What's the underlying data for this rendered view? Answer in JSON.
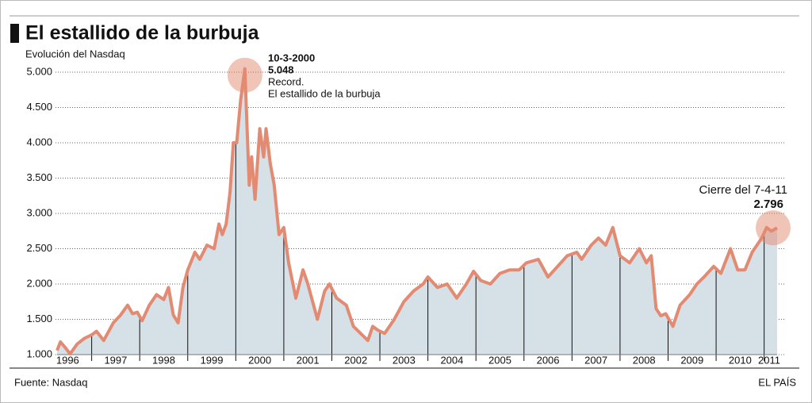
{
  "chart_data": {
    "type": "area",
    "title": "El estallido de la burbuja",
    "subtitle": "Evolución del Nasdaq",
    "source": "Fuente: Nasdaq",
    "brand": "EL PAÍS",
    "annotations": [
      "10-3-2000",
      "5.048",
      "Record.",
      "El estallido de la burbuja",
      "Cierre del 7-4-11",
      "2.796"
    ],
    "line_color": "#e38a72",
    "fill_color": "#d6e0e7",
    "grid": true,
    "xlim": [
      1996.28,
      2011.27
    ],
    "ylim": [
      1000,
      5000
    ],
    "xticks": [
      {
        "value": 1996,
        "label": "1996"
      },
      {
        "value": 1997,
        "label": "1997"
      },
      {
        "value": 1998,
        "label": "1998"
      },
      {
        "value": 1999,
        "label": "1999"
      },
      {
        "value": 2000,
        "label": "2000"
      },
      {
        "value": 2001,
        "label": "2001"
      },
      {
        "value": 2002,
        "label": "2002"
      },
      {
        "value": 2003,
        "label": "2003"
      },
      {
        "value": 2004,
        "label": "2004"
      },
      {
        "value": 2005,
        "label": "2005"
      },
      {
        "value": 2006,
        "label": "2006"
      },
      {
        "value": 2007,
        "label": "2007"
      },
      {
        "value": 2008,
        "label": "2008"
      },
      {
        "value": 2009,
        "label": "2009"
      },
      {
        "value": 2010,
        "label": "2010"
      },
      {
        "value": 2011,
        "label": "2011"
      }
    ],
    "yticks": [
      {
        "value": 1000,
        "label": "1.000"
      },
      {
        "value": 1500,
        "label": "1.500"
      },
      {
        "value": 2000,
        "label": "2.000"
      },
      {
        "value": 2500,
        "label": "2.500"
      },
      {
        "value": 3000,
        "label": "3.000"
      },
      {
        "value": 3500,
        "label": "3.500"
      },
      {
        "value": 4000,
        "label": "4.000"
      },
      {
        "value": 4500,
        "label": "4.500"
      },
      {
        "value": 5000,
        "label": "5.000"
      }
    ],
    "x": [
      1996.28,
      1996.35,
      1996.45,
      1996.55,
      1996.7,
      1996.85,
      1997.0,
      1997.1,
      1997.25,
      1997.45,
      1997.6,
      1997.75,
      1997.85,
      1997.95,
      1998.05,
      1998.2,
      1998.35,
      1998.5,
      1998.6,
      1998.7,
      1998.8,
      1998.9,
      1999.0,
      1999.15,
      1999.25,
      1999.4,
      1999.55,
      1999.65,
      1999.72,
      1999.8,
      1999.88,
      1999.95,
      2000.02,
      2000.1,
      2000.19,
      2000.28,
      2000.33,
      2000.4,
      2000.5,
      2000.58,
      2000.63,
      2000.72,
      2000.8,
      2000.9,
      2001.0,
      2001.1,
      2001.25,
      2001.4,
      2001.5,
      2001.7,
      2001.85,
      2001.95,
      2002.1,
      2002.3,
      2002.45,
      2002.6,
      2002.75,
      2002.85,
      2002.95,
      2003.1,
      2003.3,
      2003.5,
      2003.7,
      2003.9,
      2004.0,
      2004.2,
      2004.4,
      2004.6,
      2004.8,
      2004.95,
      2005.1,
      2005.3,
      2005.5,
      2005.7,
      2005.9,
      2006.05,
      2006.3,
      2006.5,
      2006.7,
      2006.9,
      2007.1,
      2007.2,
      2007.4,
      2007.55,
      2007.7,
      2007.85,
      2008.0,
      2008.2,
      2008.4,
      2008.55,
      2008.65,
      2008.75,
      2008.85,
      2008.95,
      2009.1,
      2009.25,
      2009.45,
      2009.6,
      2009.75,
      2009.95,
      2010.1,
      2010.3,
      2010.45,
      2010.6,
      2010.75,
      2010.95,
      2011.05,
      2011.15,
      2011.27
    ],
    "values": [
      1060,
      1180,
      1100,
      1010,
      1150,
      1230,
      1280,
      1330,
      1200,
      1450,
      1560,
      1700,
      1580,
      1600,
      1480,
      1700,
      1850,
      1780,
      1950,
      1560,
      1450,
      1950,
      2200,
      2450,
      2350,
      2550,
      2500,
      2850,
      2700,
      2850,
      3300,
      4000,
      4000,
      4600,
      5048,
      3400,
      3800,
      3200,
      4200,
      3800,
      4200,
      3700,
      3400,
      2700,
      2800,
      2300,
      1800,
      2200,
      2000,
      1500,
      1900,
      2000,
      1800,
      1700,
      1400,
      1300,
      1200,
      1400,
      1350,
      1300,
      1500,
      1750,
      1900,
      2000,
      2100,
      1950,
      2000,
      1800,
      2000,
      2180,
      2050,
      2000,
      2150,
      2200,
      2200,
      2300,
      2350,
      2100,
      2250,
      2400,
      2450,
      2350,
      2550,
      2650,
      2550,
      2800,
      2400,
      2300,
      2500,
      2300,
      2400,
      1650,
      1550,
      1580,
      1400,
      1700,
      1850,
      2000,
      2100,
      2250,
      2150,
      2500,
      2200,
      2200,
      2450,
      2650,
      2800,
      2750,
      2796
    ]
  }
}
